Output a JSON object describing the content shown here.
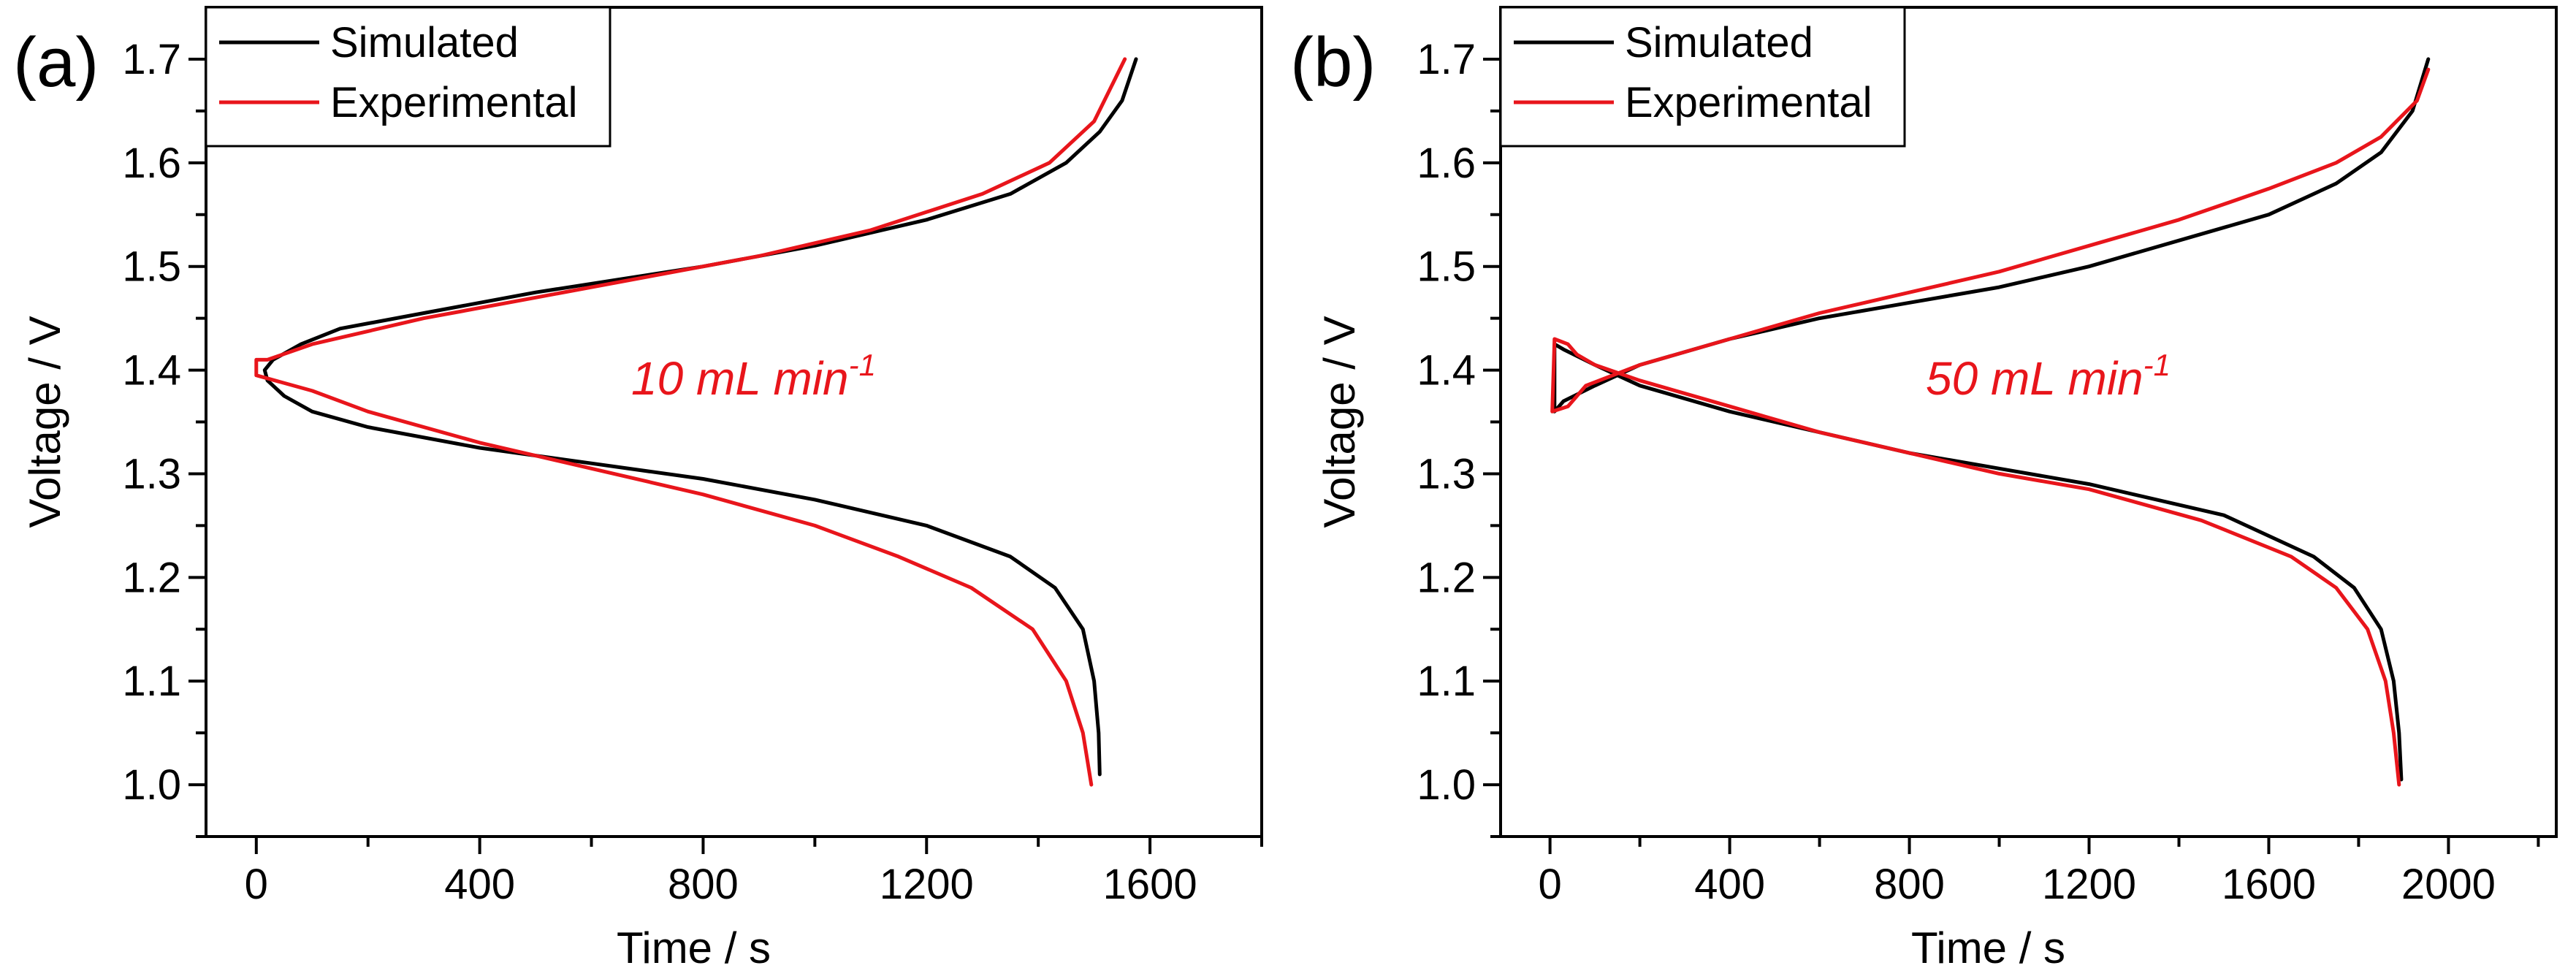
{
  "figure": {
    "background": "#ffffff"
  },
  "chart_data": [
    {
      "panel_label": "(a)",
      "type": "line",
      "annotation": {
        "text": "10 mL min",
        "sup": "-1",
        "color": "#e8151b"
      },
      "xlabel": "Time / s",
      "ylabel": "Voltage / V",
      "xlim": [
        -90,
        1800
      ],
      "ylim": [
        0.95,
        1.75
      ],
      "xticks": [
        0,
        400,
        800,
        1200,
        1600
      ],
      "xtick_labels": [
        "0",
        "400",
        "800",
        "1200",
        "1600"
      ],
      "yticks": [
        1.0,
        1.1,
        1.2,
        1.3,
        1.4,
        1.5,
        1.6,
        1.7
      ],
      "ytick_labels": [
        "1.0",
        "1.1",
        "1.2",
        "1.3",
        "1.4",
        "1.5",
        "1.6",
        "1.7"
      ],
      "grid": false,
      "legend_position": "top-left",
      "series": [
        {
          "name": "Simulated",
          "color": "#000000",
          "points": [
            [
              1510,
              1.01
            ],
            [
              1508,
              1.05
            ],
            [
              1500,
              1.1
            ],
            [
              1480,
              1.15
            ],
            [
              1430,
              1.19
            ],
            [
              1350,
              1.22
            ],
            [
              1200,
              1.25
            ],
            [
              1000,
              1.275
            ],
            [
              800,
              1.295
            ],
            [
              600,
              1.31
            ],
            [
              400,
              1.325
            ],
            [
              200,
              1.345
            ],
            [
              100,
              1.36
            ],
            [
              50,
              1.375
            ],
            [
              20,
              1.39
            ],
            [
              15,
              1.4
            ],
            [
              30,
              1.41
            ],
            [
              80,
              1.425
            ],
            [
              150,
              1.44
            ],
            [
              300,
              1.455
            ],
            [
              500,
              1.475
            ],
            [
              800,
              1.5
            ],
            [
              1000,
              1.52
            ],
            [
              1200,
              1.545
            ],
            [
              1350,
              1.57
            ],
            [
              1450,
              1.6
            ],
            [
              1510,
              1.63
            ],
            [
              1550,
              1.66
            ],
            [
              1575,
              1.7
            ]
          ]
        },
        {
          "name": "Experimental",
          "color": "#e8151b",
          "points": [
            [
              1495,
              1.0
            ],
            [
              1480,
              1.05
            ],
            [
              1450,
              1.1
            ],
            [
              1390,
              1.15
            ],
            [
              1280,
              1.19
            ],
            [
              1150,
              1.22
            ],
            [
              1000,
              1.25
            ],
            [
              800,
              1.28
            ],
            [
              600,
              1.305
            ],
            [
              400,
              1.33
            ],
            [
              200,
              1.36
            ],
            [
              100,
              1.38
            ],
            [
              0,
              1.395
            ],
            [
              0,
              1.41
            ],
            [
              20,
              1.41
            ],
            [
              100,
              1.425
            ],
            [
              300,
              1.45
            ],
            [
              500,
              1.47
            ],
            [
              700,
              1.49
            ],
            [
              900,
              1.51
            ],
            [
              1100,
              1.535
            ],
            [
              1300,
              1.57
            ],
            [
              1420,
              1.6
            ],
            [
              1500,
              1.64
            ],
            [
              1555,
              1.7
            ]
          ]
        }
      ]
    },
    {
      "panel_label": "(b)",
      "type": "line",
      "annotation": {
        "text": "50 mL min",
        "sup": "-1",
        "color": "#e8151b"
      },
      "xlabel": "Time / s",
      "ylabel": "Voltage / V",
      "xlim": [
        -110,
        2240
      ],
      "ylim": [
        0.95,
        1.75
      ],
      "xticks": [
        0,
        400,
        800,
        1200,
        1600,
        2000
      ],
      "xtick_labels": [
        "0",
        "400",
        "800",
        "1200",
        "1600",
        "2000"
      ],
      "yticks": [
        1.0,
        1.1,
        1.2,
        1.3,
        1.4,
        1.5,
        1.6,
        1.7
      ],
      "ytick_labels": [
        "1.0",
        "1.1",
        "1.2",
        "1.3",
        "1.4",
        "1.5",
        "1.6",
        "1.7"
      ],
      "grid": false,
      "legend_position": "top-left",
      "series": [
        {
          "name": "Simulated",
          "color": "#000000",
          "points": [
            [
              1895,
              1.005
            ],
            [
              1890,
              1.05
            ],
            [
              1878,
              1.1
            ],
            [
              1850,
              1.15
            ],
            [
              1790,
              1.19
            ],
            [
              1700,
              1.22
            ],
            [
              1500,
              1.26
            ],
            [
              1200,
              1.29
            ],
            [
              1000,
              1.305
            ],
            [
              800,
              1.32
            ],
            [
              600,
              1.34
            ],
            [
              400,
              1.36
            ],
            [
              200,
              1.385
            ],
            [
              100,
              1.405
            ],
            [
              30,
              1.42
            ],
            [
              10,
              1.425
            ],
            [
              10,
              1.36
            ],
            [
              30,
              1.37
            ],
            [
              100,
              1.385
            ],
            [
              200,
              1.405
            ],
            [
              400,
              1.43
            ],
            [
              600,
              1.45
            ],
            [
              800,
              1.465
            ],
            [
              1000,
              1.48
            ],
            [
              1200,
              1.5
            ],
            [
              1400,
              1.525
            ],
            [
              1600,
              1.55
            ],
            [
              1750,
              1.58
            ],
            [
              1850,
              1.61
            ],
            [
              1920,
              1.65
            ],
            [
              1955,
              1.7
            ]
          ]
        },
        {
          "name": "Experimental",
          "color": "#e8151b",
          "points": [
            [
              1890,
              1.0
            ],
            [
              1878,
              1.05
            ],
            [
              1860,
              1.1
            ],
            [
              1820,
              1.15
            ],
            [
              1750,
              1.19
            ],
            [
              1650,
              1.22
            ],
            [
              1450,
              1.255
            ],
            [
              1200,
              1.285
            ],
            [
              1000,
              1.3
            ],
            [
              800,
              1.32
            ],
            [
              600,
              1.34
            ],
            [
              400,
              1.365
            ],
            [
              200,
              1.39
            ],
            [
              100,
              1.405
            ],
            [
              60,
              1.415
            ],
            [
              40,
              1.425
            ],
            [
              10,
              1.43
            ],
            [
              5,
              1.36
            ],
            [
              40,
              1.365
            ],
            [
              80,
              1.385
            ],
            [
              200,
              1.405
            ],
            [
              400,
              1.43
            ],
            [
              600,
              1.455
            ],
            [
              800,
              1.475
            ],
            [
              1000,
              1.495
            ],
            [
              1200,
              1.52
            ],
            [
              1400,
              1.545
            ],
            [
              1600,
              1.575
            ],
            [
              1750,
              1.6
            ],
            [
              1850,
              1.625
            ],
            [
              1930,
              1.66
            ],
            [
              1955,
              1.69
            ]
          ]
        }
      ]
    }
  ]
}
